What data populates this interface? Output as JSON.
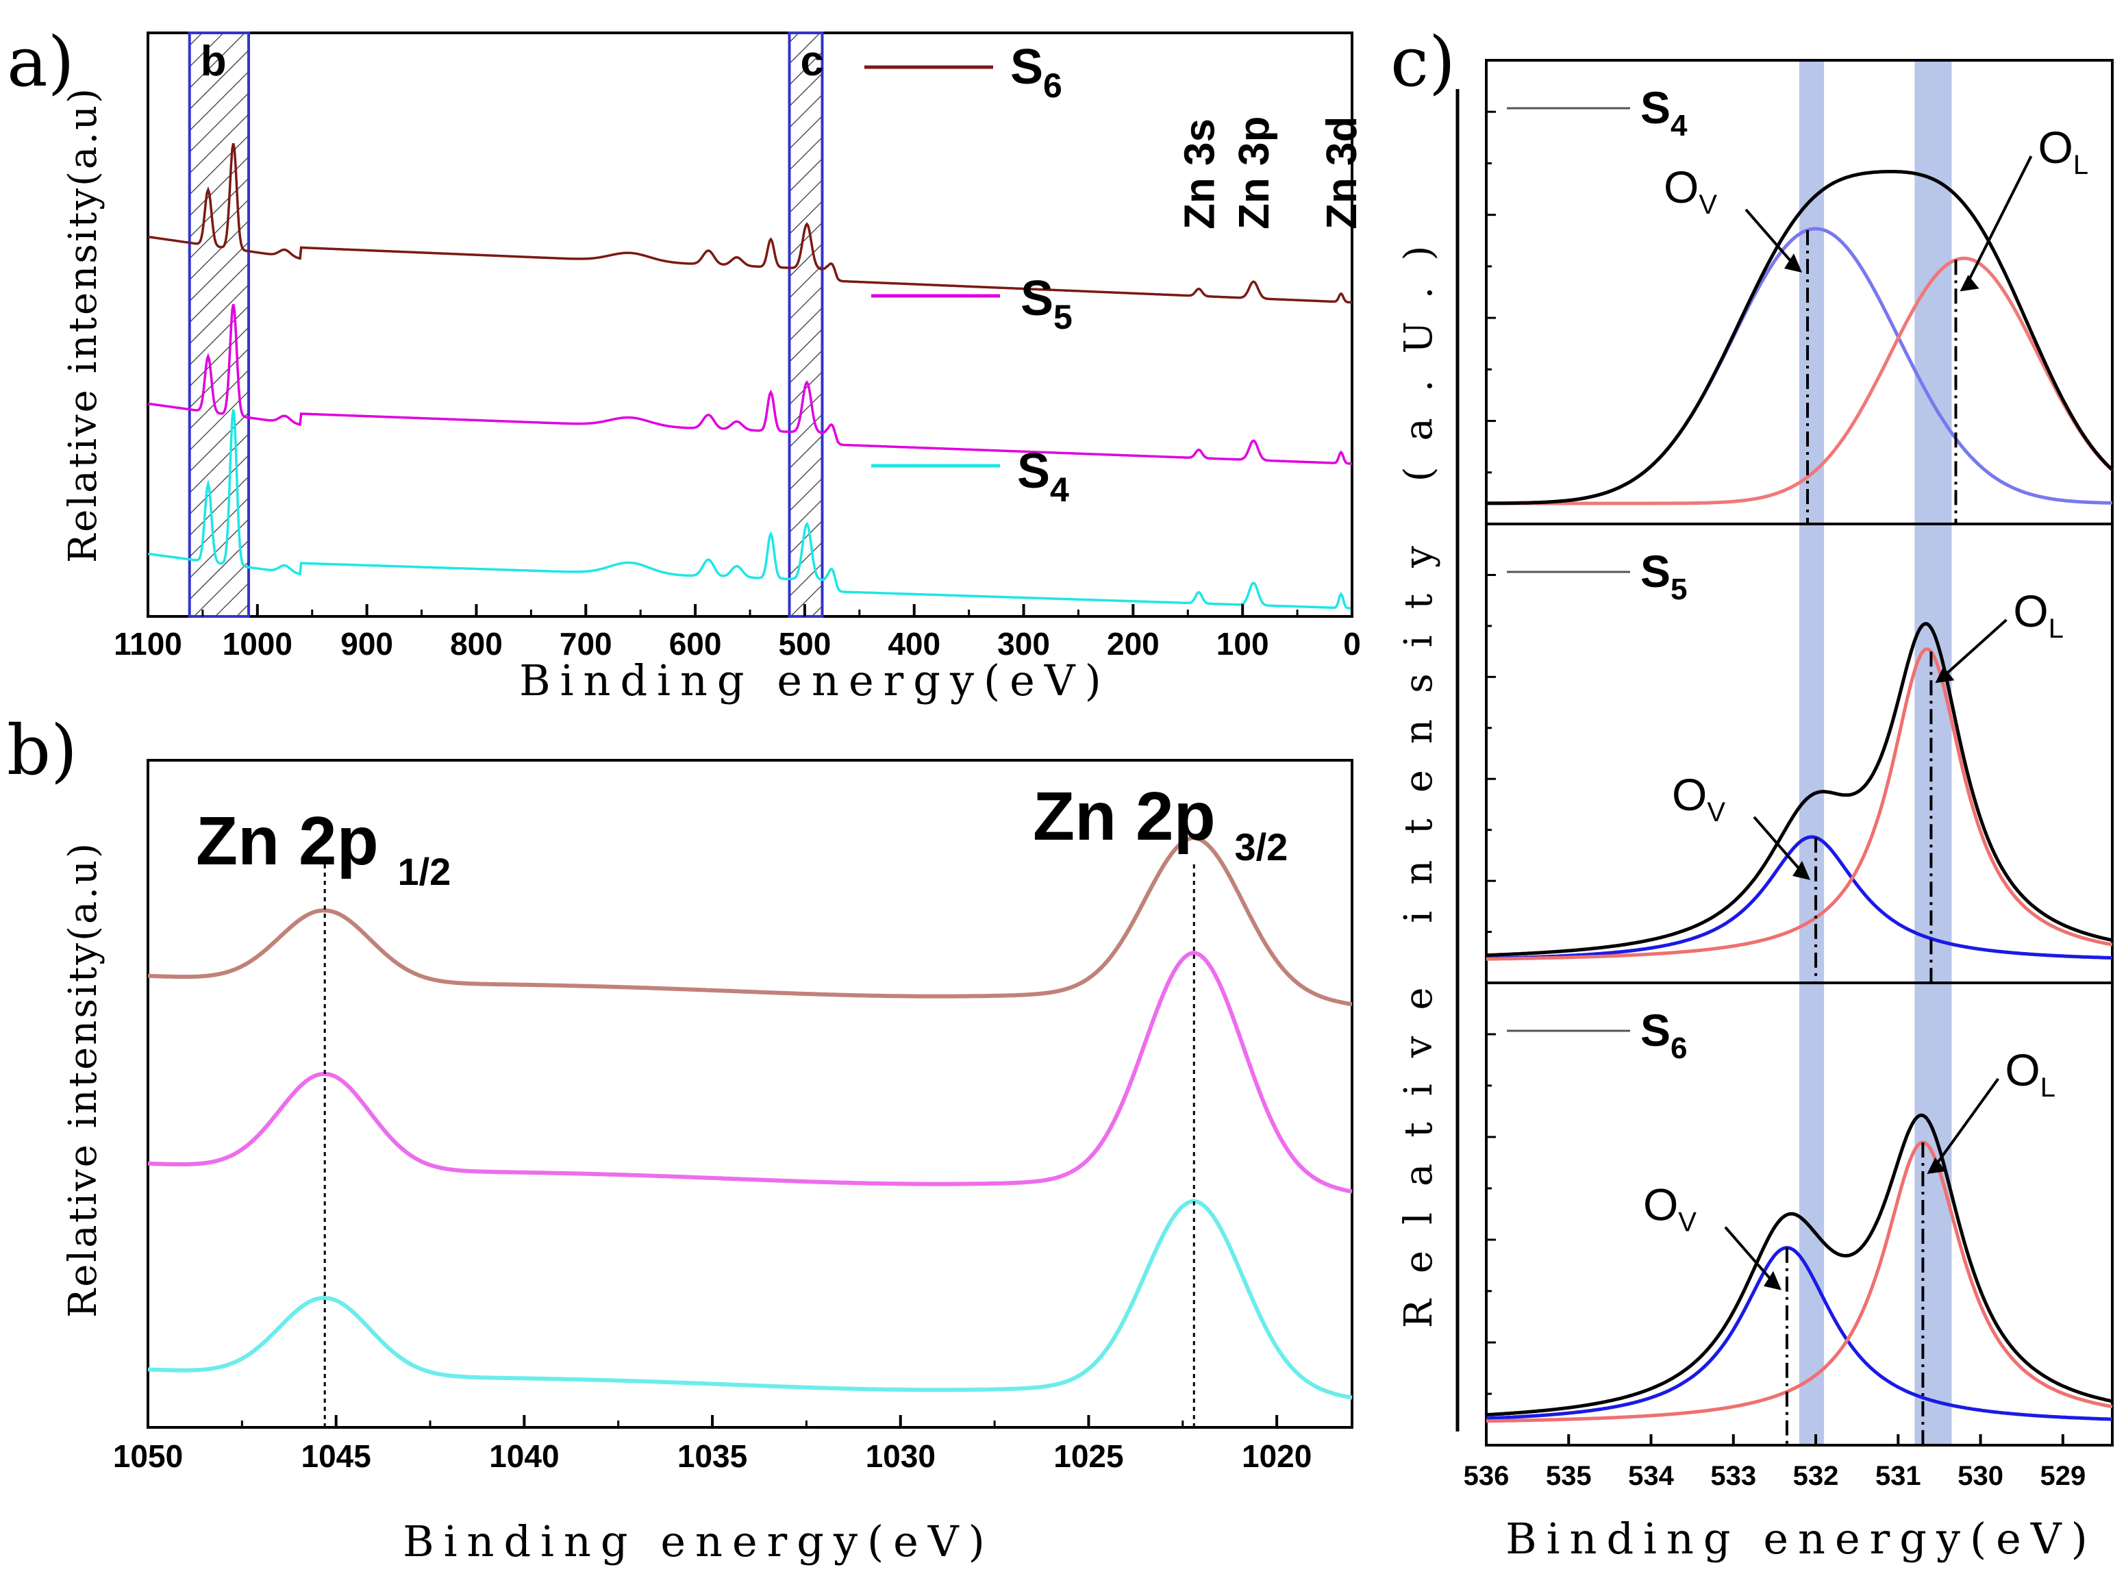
{
  "chart_data": [
    {
      "id": "a",
      "type": "line",
      "panel_label": "a)",
      "xlabel": "Binding energy(eV)",
      "ylabel": "Relative intensity(a.u)",
      "xlim": [
        1100,
        0
      ],
      "xticks": [
        1100,
        1000,
        900,
        800,
        700,
        600,
        500,
        400,
        300,
        200,
        100,
        0
      ],
      "xminor": [
        1050,
        950,
        850,
        750,
        650,
        550,
        450,
        350,
        250,
        150,
        50
      ],
      "ylim": [
        0,
        100
      ],
      "shaded_regions": [
        {
          "label": "b",
          "from": 1062,
          "to": 1008
        },
        {
          "label": "c",
          "from": 514,
          "to": 484
        }
      ],
      "peak_labels": [
        "Zn 3s",
        "Zn 3p",
        "Zn 3d"
      ],
      "peak_positions": [
        140,
        90,
        10
      ],
      "series": [
        {
          "name": "S",
          "sub": "6",
          "color": "#7a1a14",
          "baseline_start": 65,
          "baseline_end": 56,
          "peaks": [
            [
              1045,
              10,
              3
            ],
            [
              1022,
              19,
              3
            ],
            [
              975,
              1.2,
              5
            ],
            [
              660,
              1.5,
              18
            ],
            [
              588,
              2.5,
              5
            ],
            [
              562,
              1.5,
              5
            ],
            [
              531,
              5,
              3
            ],
            [
              498,
              8,
              4
            ],
            [
              475,
              2,
              3
            ],
            [
              140,
              1.3,
              3
            ],
            [
              90,
              3,
              4
            ],
            [
              10,
              1.5,
              2
            ]
          ]
        },
        {
          "name": "S",
          "sub": "5",
          "color": "#e000e0",
          "baseline_start": 35,
          "baseline_end": 27,
          "peaks": [
            [
              1045,
              10,
              3
            ],
            [
              1022,
              20,
              3
            ],
            [
              975,
              1.2,
              5
            ],
            [
              660,
              1.5,
              18
            ],
            [
              588,
              2.5,
              5
            ],
            [
              562,
              1.5,
              5
            ],
            [
              531,
              7,
              3
            ],
            [
              498,
              9,
              4
            ],
            [
              475,
              2.5,
              3
            ],
            [
              140,
              1.5,
              3
            ],
            [
              90,
              3.5,
              4
            ],
            [
              10,
              2,
              2
            ]
          ]
        },
        {
          "name": "S",
          "sub": "4",
          "color": "#1ee6e6",
          "baseline_start": 8,
          "baseline_end": 1,
          "peaks": [
            [
              1045,
              14,
              3
            ],
            [
              1022,
              28,
              3
            ],
            [
              975,
              1.2,
              5
            ],
            [
              660,
              2,
              18
            ],
            [
              588,
              3,
              5
            ],
            [
              562,
              2,
              5
            ],
            [
              531,
              8,
              3
            ],
            [
              498,
              10,
              4
            ],
            [
              475,
              3,
              3
            ],
            [
              140,
              2,
              3
            ],
            [
              90,
              4,
              4
            ],
            [
              10,
              2.5,
              2
            ]
          ]
        }
      ]
    },
    {
      "id": "b",
      "type": "line",
      "panel_label": "b)",
      "xlabel": "Binding energy(eV)",
      "ylabel": "Relative intensity(a.u)",
      "xlim": [
        1050,
        1018
      ],
      "xticks": [
        1050,
        1045,
        1040,
        1035,
        1030,
        1025,
        1020
      ],
      "xminor": [
        1047.5,
        1042.5,
        1037.5,
        1032.5,
        1027.5,
        1022.5
      ],
      "ylim": [
        0,
        100
      ],
      "peak_labels": [
        {
          "text": "Zn 2p",
          "sub": "1/2",
          "position": 1045.3
        },
        {
          "text": "Zn 2p",
          "sub": "3/2",
          "position": 1022.2
        }
      ],
      "series": [
        {
          "name": "S6",
          "color": "#c08278",
          "baseline": 70,
          "peak1": 12,
          "peak2": 25
        },
        {
          "name": "S5",
          "color": "#ee6cee",
          "baseline": 39,
          "peak1": 16,
          "peak2": 37
        },
        {
          "name": "S4",
          "color": "#6cecec",
          "baseline": 5,
          "peak1": 13,
          "peak2": 30
        }
      ]
    },
    {
      "id": "c",
      "type": "line",
      "panel_label": "c)",
      "xlabel": "Binding energy(eV)",
      "ylabel": "Relative intensity (a.U.)",
      "xlim": [
        536,
        528.4
      ],
      "xticks": [
        536,
        535,
        534,
        533,
        532,
        531,
        530,
        529
      ],
      "bands": [
        [
          532.2,
          531.9
        ],
        [
          530.8,
          530.35
        ]
      ],
      "subplots": [
        {
          "sample": "S",
          "sub": "4",
          "ov_center": 532.0,
          "ov_height": 65,
          "ov_width": 1.0,
          "ol_center": 530.2,
          "ol_height": 58,
          "ol_width": 0.9,
          "ov_color": "#7878f0",
          "ol_color": "#f07878",
          "shape": "gauss",
          "ov_label": "O",
          "ov_sub": "V",
          "ol_label": "O",
          "ol_sub": "L",
          "ov_line": 532.1,
          "ol_line": 530.3
        },
        {
          "sample": "S",
          "sub": "5",
          "ov_center": 532.05,
          "ov_height": 30,
          "ov_width": 0.7,
          "ol_center": 530.65,
          "ol_height": 75,
          "ol_width": 0.55,
          "ov_color": "#1a1ae6",
          "ol_color": "#f07070",
          "shape": "lorentz",
          "ov_label": "O",
          "ov_sub": "V",
          "ol_label": "O",
          "ol_sub": "L",
          "ov_line": 532.0,
          "ol_line": 530.6
        },
        {
          "sample": "S",
          "sub": "6",
          "ov_center": 532.35,
          "ov_height": 42,
          "ov_width": 0.7,
          "ol_center": 530.7,
          "ol_height": 67,
          "ol_width": 0.6,
          "ov_color": "#1a1ae6",
          "ol_color": "#f07070",
          "shape": "lorentz",
          "ov_label": "O",
          "ov_sub": "V",
          "ol_label": "O",
          "ol_sub": "L",
          "ov_line": 532.35,
          "ol_line": 530.7
        }
      ]
    }
  ]
}
